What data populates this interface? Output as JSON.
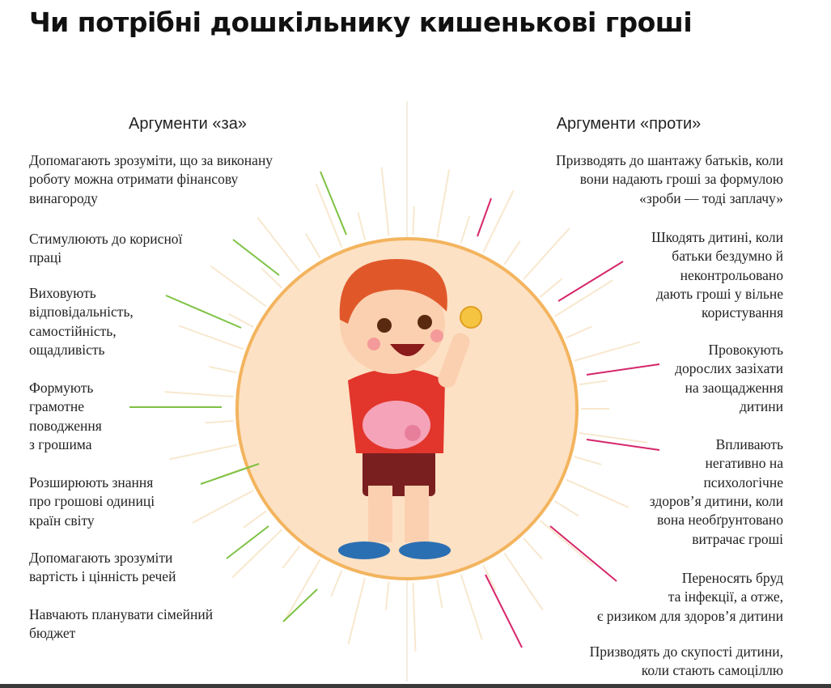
{
  "title": "Чи потрібні дошкільнику кишенькові гроші",
  "pros": {
    "heading": "Аргументи «за»",
    "items": [
      [
        "Допомагають зрозуміти, що за виконану",
        "роботу можна отримати фінансову",
        "винагороду"
      ],
      [
        "Стимулюють до корисної",
        "праці"
      ],
      [
        "Виховують",
        "відповідальність,",
        "самостійність,",
        "ощадливість"
      ],
      [
        "Формують",
        "грамотне",
        "поводження",
        "з грошима"
      ],
      [
        "Розширюють знання",
        "про грошові одиниці",
        "країн світу"
      ],
      [
        "Допомагають зрозуміти",
        "вартість і цінність речей"
      ],
      [
        "Навчають планувати сімейний",
        "бюджет"
      ]
    ]
  },
  "cons": {
    "heading": "Аргументи «проти»",
    "items": [
      [
        "Призводять до шантажу батьків, коли",
        "вони надають гроші за формулою",
        "«зроби — тоді заплачу»"
      ],
      [
        "Шкодять дитині, коли",
        "батьки бездумно й",
        "неконтрольовано",
        "дають гроші у вільне",
        "користування"
      ],
      [
        "Провокують",
        "дорослих зазіхати",
        "на заощадження",
        "дитини"
      ],
      [
        "Впливають",
        "негативно на",
        "психологічне",
        "здоров’я дитини, коли",
        "вона необґрунтовано",
        "витрачає гроші"
      ],
      [
        "Переносять бруд",
        "та інфекції, а отже,",
        "є ризиком для здоров’я дитини"
      ],
      [
        "Призводять до скупості дитини,",
        "коли стають самоціллю"
      ]
    ]
  }
}
